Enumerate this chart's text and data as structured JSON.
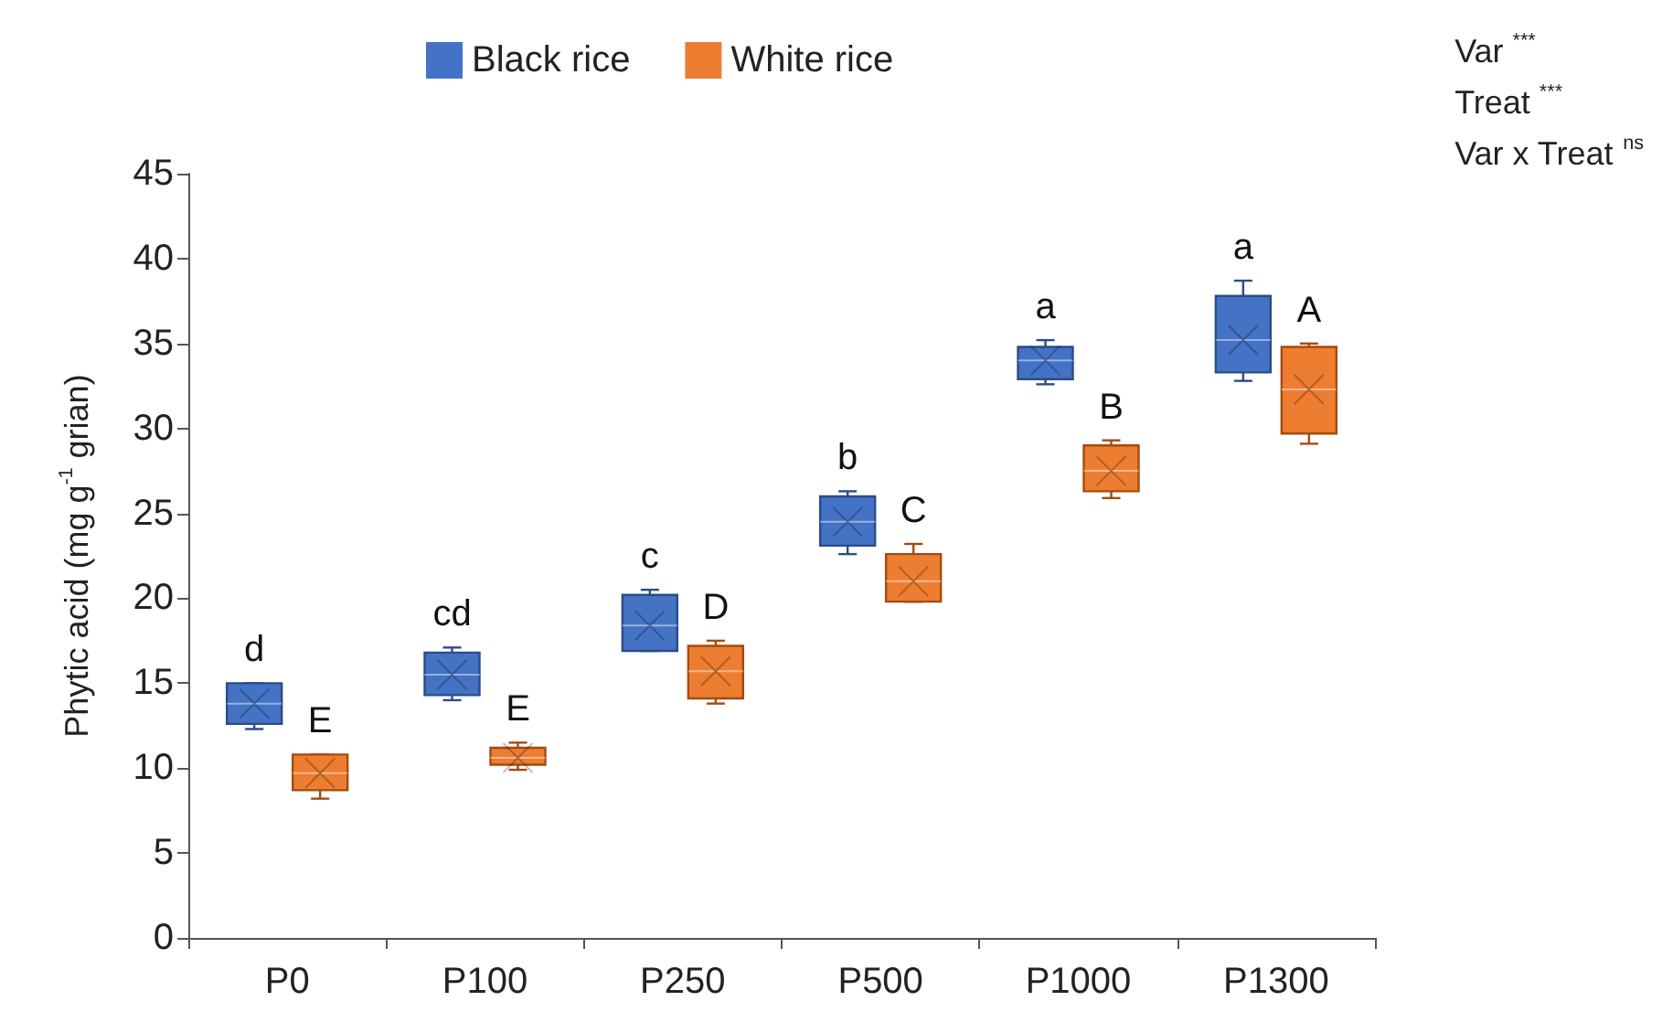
{
  "chart_data": {
    "type": "box",
    "ylabel": "Phytic acid (mg g$^{-1}$ grian)",
    "categories": [
      "P0",
      "P100",
      "P250",
      "P500",
      "P1000",
      "P1300"
    ],
    "ylim": [
      0,
      45
    ],
    "yticks": [
      0,
      5,
      10,
      15,
      20,
      25,
      30,
      35,
      40,
      45
    ],
    "grid": false,
    "legend": "top",
    "series": [
      {
        "name": "Black rice",
        "color": "#4472c4",
        "boxes": [
          {
            "low": 12.3,
            "q1": 12.6,
            "median": 13.8,
            "q3": 15.0,
            "high": 15.0,
            "mean": 13.8
          },
          {
            "low": 14.0,
            "q1": 14.3,
            "median": 15.5,
            "q3": 16.8,
            "high": 17.1,
            "mean": 15.5
          },
          {
            "low": 16.9,
            "q1": 16.9,
            "median": 18.4,
            "q3": 20.2,
            "high": 20.5,
            "mean": 18.4
          },
          {
            "low": 22.6,
            "q1": 23.1,
            "median": 24.5,
            "q3": 26.0,
            "high": 26.3,
            "mean": 24.5
          },
          {
            "low": 32.6,
            "q1": 32.9,
            "median": 34.0,
            "q3": 34.8,
            "high": 35.2,
            "mean": 34.0
          },
          {
            "low": 32.8,
            "q1": 33.3,
            "median": 35.2,
            "q3": 37.8,
            "high": 38.7,
            "mean": 35.2
          }
        ]
      },
      {
        "name": "White rice",
        "color": "#ed7d31",
        "boxes": [
          {
            "low": 8.2,
            "q1": 8.7,
            "median": 9.7,
            "q3": 10.8,
            "high": 10.8,
            "mean": 9.7
          },
          {
            "low": 9.9,
            "q1": 10.2,
            "median": 10.6,
            "q3": 11.2,
            "high": 11.5,
            "mean": 10.6
          },
          {
            "low": 13.8,
            "q1": 14.1,
            "median": 15.7,
            "q3": 17.2,
            "high": 17.5,
            "mean": 15.7
          },
          {
            "low": 19.8,
            "q1": 19.8,
            "median": 21.0,
            "q3": 22.6,
            "high": 23.2,
            "mean": 21.0
          },
          {
            "low": 25.9,
            "q1": 26.3,
            "median": 27.5,
            "q3": 29.0,
            "high": 29.3,
            "mean": 27.5
          },
          {
            "low": 29.1,
            "q1": 29.7,
            "median": 32.3,
            "q3": 34.8,
            "high": 35.0,
            "mean": 32.3
          }
        ]
      }
    ],
    "annotations": [
      {
        "text": "d",
        "x": "P0",
        "y": 15.0
      },
      {
        "text": "E",
        "x": "P0",
        "y": 10.8
      },
      {
        "text": "cd",
        "x": "P100",
        "y": 17.1
      },
      {
        "text": "E",
        "x": "P100",
        "y": 11.5
      },
      {
        "text": "c",
        "x": "P250",
        "y": 20.5
      },
      {
        "text": "D",
        "x": "P250",
        "y": 17.5
      },
      {
        "text": "b",
        "x": "P500",
        "y": 26.3
      },
      {
        "text": "C",
        "x": "P500",
        "y": 23.2
      },
      {
        "text": "a",
        "x": "P1000",
        "y": 35.2
      },
      {
        "text": "B",
        "x": "P1000",
        "y": 29.3
      },
      {
        "text": "a",
        "x": "P1300",
        "y": 37.8
      },
      {
        "text": "A",
        "x": "P1300",
        "y": 35.0
      },
      "Var $^{***}$",
      "Treat $^{***}$",
      "Var x Treat $^{ns}$"
    ]
  }
}
